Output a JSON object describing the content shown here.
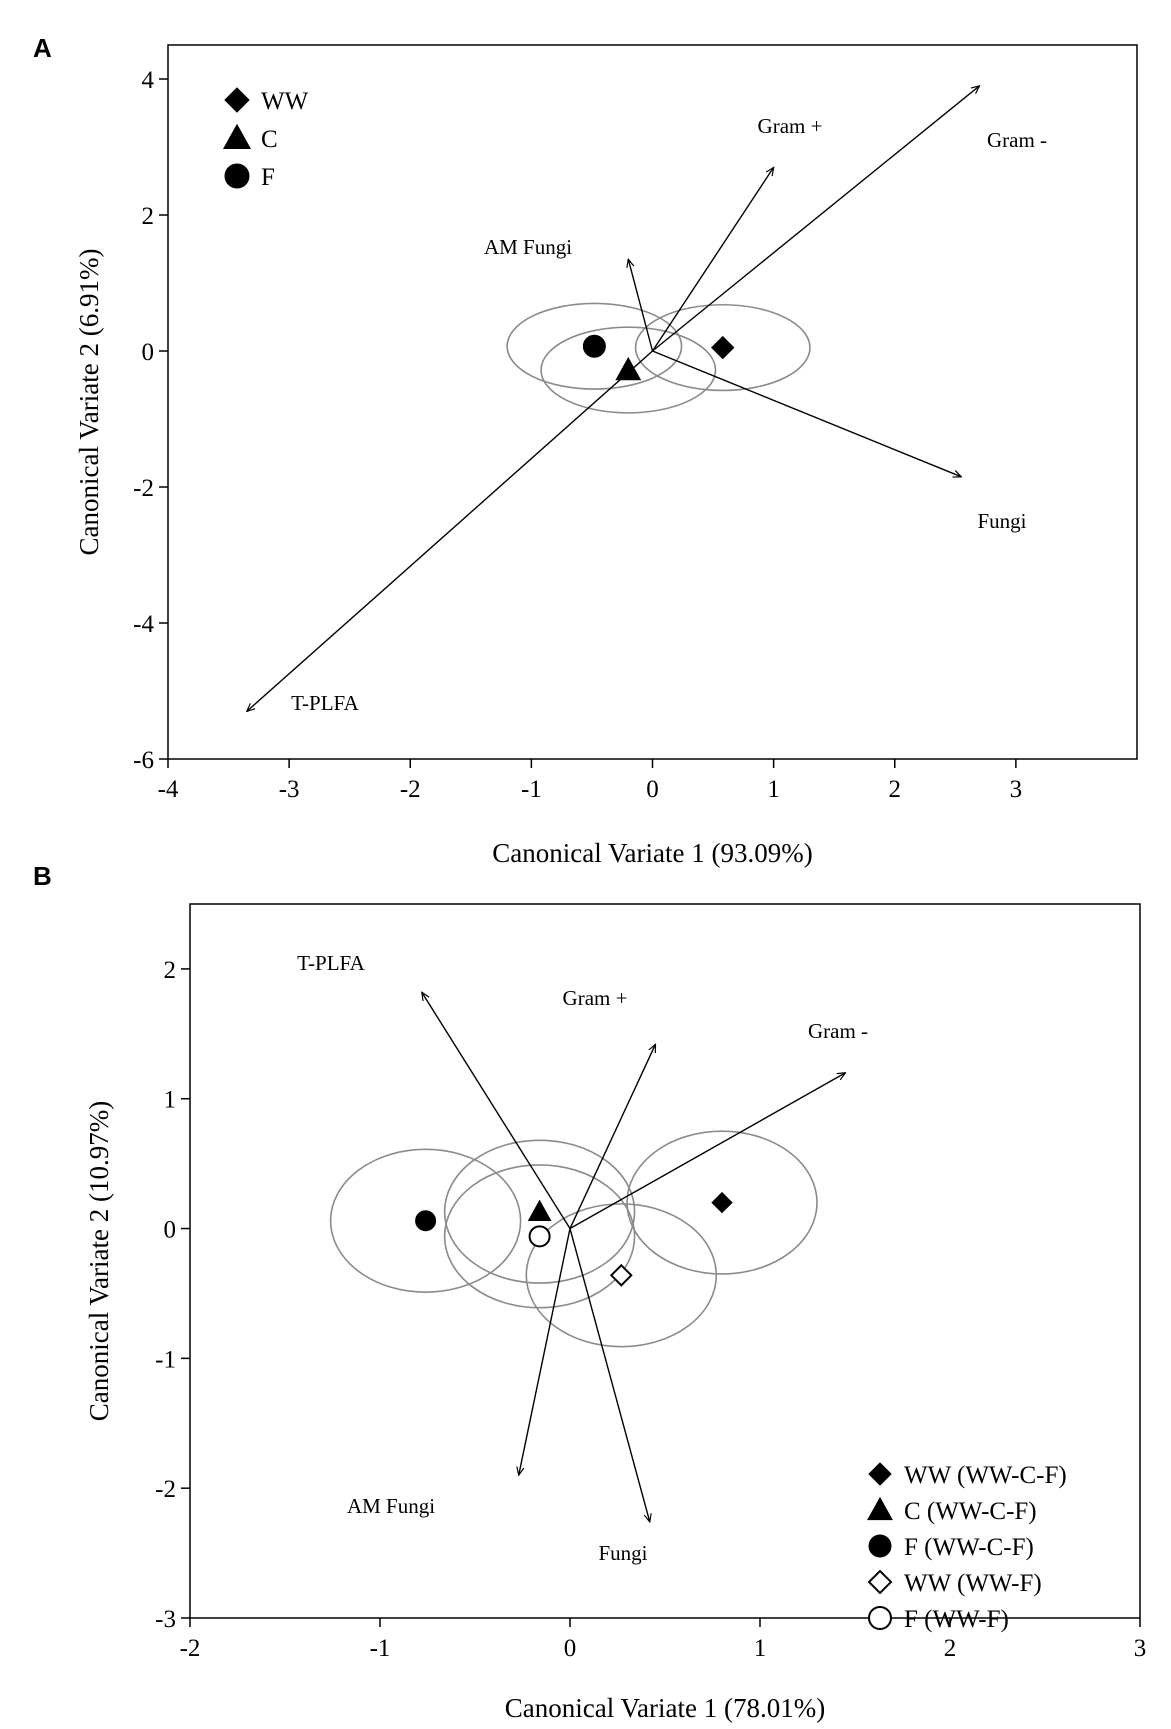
{
  "chart_data": [
    {
      "panel": "A",
      "type": "scatter",
      "title": "",
      "xlabel": "Canonical Variate 1 (93.09%)",
      "ylabel": "Canonical Variate 2 (6.91%)",
      "xlim": [
        -4,
        4
      ],
      "ylim": [
        -6,
        4.5
      ],
      "xticks": [
        -4,
        -3,
        -2,
        -1,
        0,
        1,
        2,
        3
      ],
      "yticks": [
        -6,
        -4,
        -2,
        0,
        2,
        4
      ],
      "legend_position": "top-left",
      "points": [
        {
          "name": "WW",
          "marker": "diamond",
          "filled": true,
          "x": 0.58,
          "y": 0.05,
          "ellipse": {
            "rx": 0.72,
            "ry": 0.63
          }
        },
        {
          "name": "C",
          "marker": "triangle",
          "filled": true,
          "x": -0.2,
          "y": -0.28,
          "ellipse": {
            "rx": 0.72,
            "ry": 0.63
          }
        },
        {
          "name": "F",
          "marker": "circle",
          "filled": true,
          "x": -0.48,
          "y": 0.07,
          "ellipse": {
            "rx": 0.72,
            "ry": 0.63
          }
        }
      ],
      "vectors": [
        {
          "label": "Gram +",
          "x": 1.0,
          "y": 2.7
        },
        {
          "label": "Gram -",
          "x": 2.7,
          "y": 3.9
        },
        {
          "label": "AM Fungi",
          "x": -0.2,
          "y": 1.35
        },
        {
          "label": "Fungi",
          "x": 2.55,
          "y": -1.85
        },
        {
          "label": "T-PLFA",
          "x": -3.35,
          "y": -5.3
        }
      ]
    },
    {
      "panel": "B",
      "type": "scatter",
      "title": "",
      "xlabel": "Canonical Variate 1 (78.01%)",
      "ylabel": "Canonical Variate 2 (10.97%)",
      "xlim": [
        -2,
        3
      ],
      "ylim": [
        -3,
        2.5
      ],
      "xticks": [
        -2,
        -1,
        0,
        1,
        2,
        3
      ],
      "yticks": [
        -3,
        -2,
        -1,
        0,
        1,
        2
      ],
      "legend_position": "bottom-right",
      "points": [
        {
          "name": "WW (WW-C-F)",
          "marker": "diamond",
          "filled": true,
          "x": 0.8,
          "y": 0.2,
          "ellipse": {
            "rx": 0.5,
            "ry": 0.55
          }
        },
        {
          "name": "C (WW-C-F)",
          "marker": "triangle",
          "filled": true,
          "x": -0.16,
          "y": 0.13,
          "ellipse": {
            "rx": 0.5,
            "ry": 0.55
          }
        },
        {
          "name": "F (WW-C-F)",
          "marker": "circle",
          "filled": true,
          "x": -0.76,
          "y": 0.06,
          "ellipse": {
            "rx": 0.5,
            "ry": 0.55
          }
        },
        {
          "name": "WW (WW-F)",
          "marker": "diamond",
          "filled": false,
          "x": 0.27,
          "y": -0.36,
          "ellipse": {
            "rx": 0.5,
            "ry": 0.55
          }
        },
        {
          "name": "F (WW-F)",
          "marker": "circle",
          "filled": false,
          "x": -0.16,
          "y": -0.06,
          "ellipse": {
            "rx": 0.5,
            "ry": 0.55
          }
        }
      ],
      "vectors": [
        {
          "label": "T-PLFA",
          "x": -0.78,
          "y": 1.82
        },
        {
          "label": "Gram +",
          "x": 0.45,
          "y": 1.42
        },
        {
          "label": "Gram -",
          "x": 1.45,
          "y": 1.2
        },
        {
          "label": "AM Fungi",
          "x": -0.27,
          "y": -1.9
        },
        {
          "label": "Fungi",
          "x": 0.42,
          "y": -2.26
        }
      ]
    }
  ]
}
